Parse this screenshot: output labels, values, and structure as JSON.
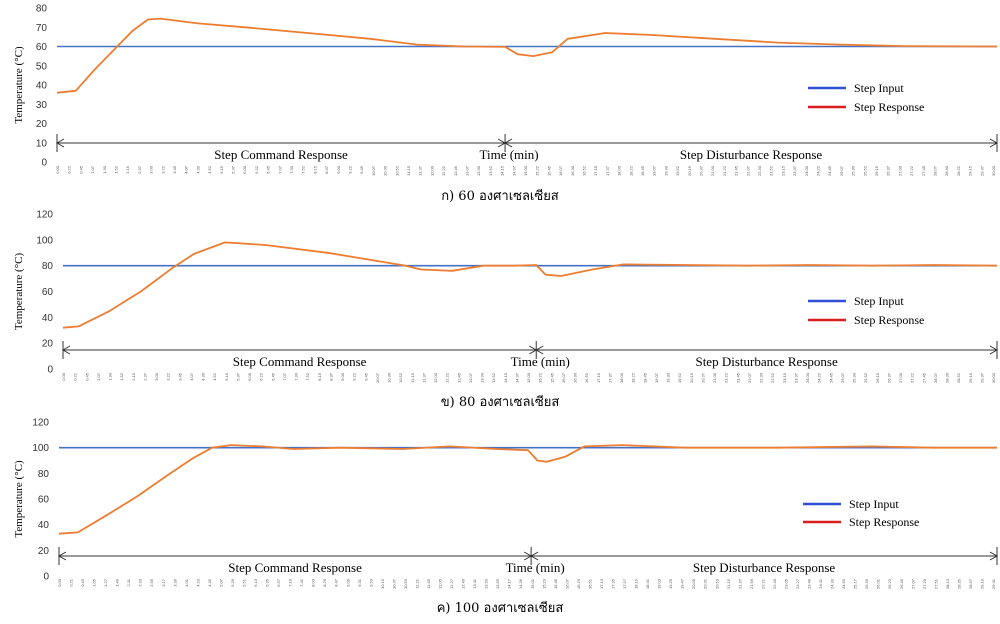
{
  "chart_data": [
    {
      "type": "line",
      "caption": "ก) 60 องศาเซลเซียส",
      "ylabel": "Temperature (°C)",
      "xlabel": "Time (min)",
      "ylim": [
        0,
        80
      ],
      "yticks": [
        0,
        10,
        20,
        30,
        40,
        50,
        60,
        70,
        80
      ],
      "xlim": [
        0,
        30
      ],
      "xticks": [
        "0.00",
        "0.22",
        "0.45",
        "1.07",
        "1.30",
        "1.52",
        "2.15",
        "2.37",
        "3.00",
        "3.22",
        "3.45",
        "4.07",
        "4.30",
        "4.52",
        "5.15",
        "5.37",
        "6.00",
        "6.22",
        "6.45",
        "7.07",
        "7.30",
        "7.52",
        "8.15",
        "8.37",
        "9.00",
        "9.22",
        "9.45",
        "10.07",
        "10.30",
        "10.52",
        "11.15",
        "11.37",
        "12.00",
        "12.22",
        "12.45",
        "13.07",
        "13.30",
        "13.52",
        "14.15",
        "14.37",
        "15.00",
        "15.22",
        "15.45",
        "16.07",
        "16.30",
        "16.52",
        "17.15",
        "17.37",
        "18.00",
        "18.22",
        "18.45",
        "19.07",
        "19.30",
        "19.52",
        "20.15",
        "20.37",
        "21.00",
        "21.22",
        "21.45",
        "22.07",
        "22.30",
        "22.52",
        "23.15",
        "23.37",
        "24.00",
        "24.22",
        "24.45",
        "25.07",
        "25.30",
        "25.52",
        "26.15",
        "26.37",
        "27.00",
        "27.22",
        "27.45",
        "28.07",
        "28.30",
        "28.52",
        "29.15",
        "29.37",
        "30.00"
      ],
      "segments": [
        {
          "label": "Step Command Response",
          "start": 0,
          "end": 14.3
        },
        {
          "label": "Step Disturbance Response",
          "start": 14.3,
          "end": 30
        }
      ],
      "legend": {
        "position": "center-right",
        "entries": [
          "Step Input",
          "Step Response"
        ]
      },
      "series": [
        {
          "name": "Step Input",
          "color": "#4472c4",
          "x": [
            0,
            30
          ],
          "y": [
            60,
            60
          ]
        },
        {
          "name": "Step Response",
          "color": "#ed7d31",
          "x": [
            0,
            0.6,
            1.2,
            1.8,
            2.4,
            2.9,
            3.3,
            4.5,
            6,
            8,
            10,
            11.5,
            13,
            14.3,
            14.7,
            15.2,
            15.8,
            16.3,
            17.5,
            19,
            21,
            23,
            25,
            27,
            30
          ],
          "y": [
            36,
            37,
            48,
            58,
            68,
            74,
            74.5,
            72,
            70,
            67,
            64,
            61,
            60,
            59.8,
            56,
            55,
            57,
            64,
            67,
            66,
            64,
            62,
            61,
            60.2,
            60
          ]
        }
      ]
    },
    {
      "type": "line",
      "caption": "ข) 80 องศาเซลเซียส",
      "ylabel": "Temperature (°C)",
      "xlabel": "Time (min)",
      "ylim": [
        0,
        120
      ],
      "yticks": [
        0,
        20,
        40,
        60,
        80,
        100,
        120
      ],
      "xlim": [
        0,
        30
      ],
      "xticks": [
        "0.00",
        "0.21",
        "0.45",
        "1.07",
        "1.30",
        "1.52",
        "2.15",
        "2.37",
        "3.00",
        "3.22",
        "3.45",
        "4.07",
        "4.30",
        "4.52",
        "5.15",
        "5.37",
        "6.00",
        "6.22",
        "6.45",
        "7.07",
        "7.30",
        "7.52",
        "8.15",
        "8.37",
        "9.00",
        "9.22",
        "9.45",
        "10.07",
        "10.30",
        "10.52",
        "11.15",
        "11.37",
        "12.00",
        "12.22",
        "12.45",
        "13.07",
        "13.30",
        "13.52",
        "14.15",
        "14.37",
        "15.00",
        "15.22",
        "15.45",
        "16.07",
        "16.30",
        "16.52",
        "17.15",
        "17.37",
        "18.00",
        "18.22",
        "18.45",
        "19.07",
        "19.30",
        "19.52",
        "20.15",
        "20.37",
        "21.00",
        "21.22",
        "21.45",
        "22.07",
        "22.30",
        "22.52",
        "23.15",
        "23.37",
        "24.00",
        "24.22",
        "24.45",
        "25.07",
        "25.30",
        "25.52",
        "26.15",
        "26.37",
        "27.00",
        "27.22",
        "27.45",
        "28.07",
        "28.30",
        "28.52",
        "29.15",
        "29.37",
        "30.00"
      ],
      "segments": [
        {
          "label": "Step Command Response",
          "start": 0,
          "end": 15.2
        },
        {
          "label": "Step Disturbance Response",
          "start": 15.2,
          "end": 30
        }
      ],
      "legend": {
        "position": "center-right",
        "entries": [
          "Step Input",
          "Step Response"
        ]
      },
      "series": [
        {
          "name": "Step Input",
          "color": "#4472c4",
          "x": [
            0,
            30
          ],
          "y": [
            80,
            80
          ]
        },
        {
          "name": "Step Response",
          "color": "#ed7d31",
          "x": [
            0,
            0.5,
            1.5,
            2.5,
            3.5,
            4.2,
            5.2,
            6.5,
            8.5,
            10,
            11,
            11.5,
            12.5,
            13.5,
            14.5,
            15.2,
            15.5,
            16,
            17,
            18,
            20,
            22,
            24,
            26,
            28,
            30
          ],
          "y": [
            32,
            33,
            45,
            60,
            78,
            89,
            98,
            96,
            90,
            84,
            80,
            77,
            76,
            80,
            80,
            80.5,
            73,
            72,
            77,
            81,
            80.5,
            80,
            80.5,
            80,
            80.5,
            80
          ]
        }
      ]
    },
    {
      "type": "line",
      "caption": "ค) 100 องศาเซลเซียส",
      "ylabel": "Temperature (°C)",
      "xlabel": "Time (min)",
      "ylim": [
        0,
        120
      ],
      "yticks": [
        0,
        20,
        40,
        60,
        80,
        100,
        120
      ],
      "xlim": [
        0,
        30
      ],
      "xticks": [
        "0.00",
        "0.21",
        "0.43",
        "1.05",
        "1.27",
        "1.49",
        "2.11",
        "2.33",
        "2.55",
        "3.17",
        "3.39",
        "4.01",
        "4.23",
        "4.45",
        "5.07",
        "5.29",
        "5.51",
        "6.13",
        "6.35",
        "6.57",
        "7.19",
        "7.41",
        "8.03",
        "8.25",
        "8.47",
        "9.09",
        "9.31",
        "9.53",
        "10.15",
        "10.37",
        "10.59",
        "11.21",
        "11.43",
        "12.05",
        "12.27",
        "12.49",
        "13.11",
        "13.33",
        "13.55",
        "14.17",
        "14.39",
        "15.01",
        "15.23",
        "15.45",
        "16.07",
        "16.29",
        "16.51",
        "17.13",
        "17.35",
        "17.57",
        "18.19",
        "18.41",
        "19.03",
        "19.25",
        "19.47",
        "20.09",
        "20.31",
        "20.53",
        "21.15",
        "21.37",
        "21.59",
        "22.21",
        "22.43",
        "23.05",
        "23.27",
        "23.49",
        "24.11",
        "24.33",
        "24.55",
        "25.17",
        "25.39",
        "26.01",
        "26.23",
        "26.45",
        "27.07",
        "27.29",
        "27.51",
        "28.13",
        "28.35",
        "28.57",
        "29.19",
        "29.41"
      ],
      "segments": [
        {
          "label": "Step Command Response",
          "start": 0,
          "end": 15.1
        },
        {
          "label": "Step Disturbance Response",
          "start": 15.1,
          "end": 30
        }
      ],
      "legend": {
        "position": "center-right",
        "entries": [
          "Step Input",
          "Step Response"
        ]
      },
      "series": [
        {
          "name": "Step Input",
          "color": "#4472c4",
          "x": [
            0,
            30
          ],
          "y": [
            100,
            100
          ]
        },
        {
          "name": "Step Response",
          "color": "#ed7d31",
          "x": [
            0,
            0.6,
            1.5,
            2.5,
            3.5,
            4.3,
            4.9,
            5.5,
            6.5,
            7.5,
            9,
            11,
            12.5,
            14,
            15,
            15.3,
            15.6,
            16.2,
            16.8,
            18,
            20,
            23,
            26,
            28,
            30
          ],
          "y": [
            33,
            34,
            47,
            62,
            79,
            92,
            100,
            102,
            101,
            99,
            100,
            99,
            101,
            99,
            98,
            90,
            89,
            93,
            101,
            102,
            100,
            100,
            101,
            100,
            100
          ]
        }
      ]
    }
  ]
}
